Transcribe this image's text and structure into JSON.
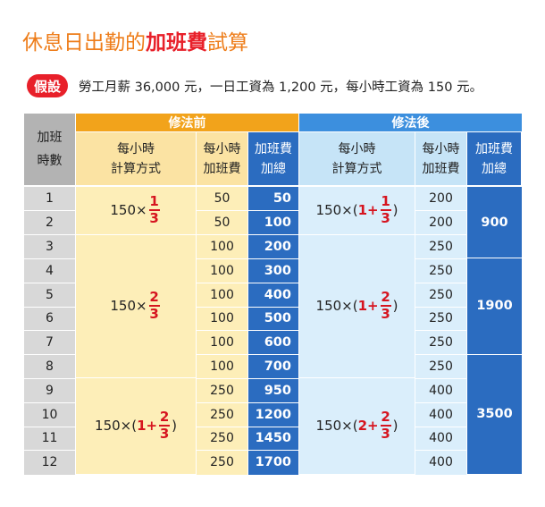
{
  "title": {
    "prefix": "休息日出勤的",
    "highlight": "加班費",
    "suffix": "試算"
  },
  "assumption": {
    "badge": "假設",
    "text": "勞工月薪 36,000 元，一日工資為 1,200 元，每小時工資為 150 元。"
  },
  "table": {
    "hours_header": "加班\n時數",
    "before_label": "修法前",
    "after_label": "修法後",
    "sub_headers": {
      "formula": "每小時\n計算方式",
      "hourly": "每小時\n加班費",
      "total": "加班費\n加總"
    },
    "hours": [
      "1",
      "2",
      "3",
      "4",
      "5",
      "6",
      "7",
      "8",
      "9",
      "10",
      "11",
      "12"
    ],
    "before_hourly": [
      "50",
      "50",
      "100",
      "100",
      "100",
      "100",
      "100",
      "100",
      "250",
      "250",
      "250",
      "250"
    ],
    "before_total": [
      "50",
      "100",
      "200",
      "300",
      "400",
      "500",
      "600",
      "700",
      "950",
      "1200",
      "1450",
      "1700"
    ],
    "after_hourly": [
      "200",
      "200",
      "250",
      "250",
      "250",
      "250",
      "250",
      "250",
      "400",
      "400",
      "400",
      "400"
    ],
    "after_totals": [
      "900",
      "1900",
      "3500"
    ],
    "before_formulas": [
      {
        "base": "150×",
        "open": "",
        "plus": "",
        "num": "1",
        "den": "3",
        "close": ""
      },
      {
        "base": "150×",
        "open": "",
        "plus": "",
        "num": "2",
        "den": "3",
        "close": ""
      },
      {
        "base": "150×",
        "open": "(",
        "plus": "1+",
        "num": "2",
        "den": "3",
        "close": ")"
      }
    ],
    "after_formulas": [
      {
        "base": "150×",
        "open": "(",
        "plus": "1+",
        "num": "1",
        "den": "3",
        "close": ")"
      },
      {
        "base": "150×",
        "open": "(",
        "plus": "1+",
        "num": "2",
        "den": "3",
        "close": ")"
      },
      {
        "base": "150×",
        "open": "(",
        "plus": "2+",
        "num": "2",
        "den": "3",
        "close": ")"
      }
    ]
  },
  "colors": {
    "accent_orange": "#ee7d1a",
    "accent_red": "#e8202a",
    "before_header": "#f2a31b",
    "after_header": "#3c8fde",
    "total_dark": "#2b6cc0"
  }
}
